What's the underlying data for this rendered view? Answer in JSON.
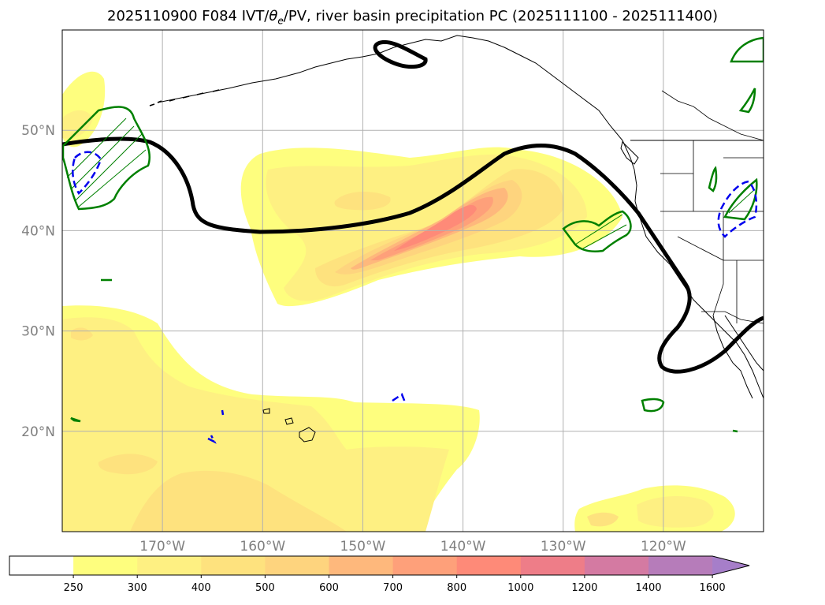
{
  "chart_data": {
    "type": "contourf_map",
    "title": "2025110900 F084 IVT/θe/PV, river basin precipitation PC (2025111100 - 2025111400)",
    "title_parts": {
      "prefix": "2025110900 F084 IVT/",
      "theta": "θ",
      "theta_sub": "e",
      "suffix": "/PV, river basin precipitation PC (2025111100 - 2025111400)"
    },
    "lon_range": [
      -180,
      -110
    ],
    "lat_range": [
      10,
      60
    ],
    "lon_ticks": [
      {
        "value": -170,
        "label": "170°W"
      },
      {
        "value": -160,
        "label": "160°W"
      },
      {
        "value": -150,
        "label": "150°W"
      },
      {
        "value": -140,
        "label": "140°W"
      },
      {
        "value": -130,
        "label": "130°W"
      },
      {
        "value": -120,
        "label": "120°W"
      }
    ],
    "lat_ticks": [
      {
        "value": 20,
        "label": "20°N"
      },
      {
        "value": 30,
        "label": "30°N"
      },
      {
        "value": 40,
        "label": "40°N"
      },
      {
        "value": 50,
        "label": "50°N"
      }
    ],
    "colorbar": {
      "levels": [
        250,
        300,
        400,
        500,
        600,
        700,
        800,
        1000,
        1200,
        1400,
        1600
      ],
      "labels": [
        "250",
        "300",
        "400",
        "500",
        "600",
        "700",
        "800",
        "1000",
        "1200",
        "1400",
        "1600"
      ],
      "colors": [
        "#ffffff",
        "#fefe7e",
        "#fef082",
        "#fee27e",
        "#fed47e",
        "#feb87c",
        "#fea07a",
        "#fe8a78",
        "#ee7d88",
        "#d47aa2",
        "#b67cba",
        "#a67ec9"
      ],
      "extend": "max"
    },
    "ivt_regions": [
      {
        "name": "atmospheric-river",
        "level": 250,
        "peak": 1000,
        "center": [
          -141,
          41
        ]
      },
      {
        "name": "subtropical-band",
        "level": 250,
        "peak": 400
      },
      {
        "name": "southeast-patch",
        "level": 250,
        "peak": 400
      }
    ],
    "colors": {
      "pv_contour": "#000000",
      "positive_pc": "#008000",
      "negative_pc": "#0000ee",
      "grid": "#b0b0b0",
      "coast": "#000000"
    }
  }
}
